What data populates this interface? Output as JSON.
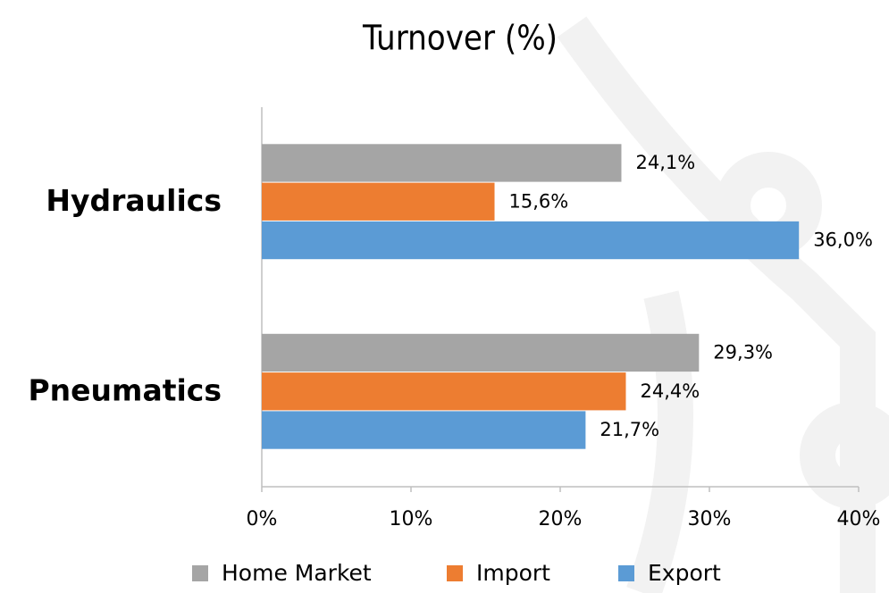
{
  "chart_data": {
    "type": "bar",
    "orientation": "horizontal",
    "title": "Turnover (%)",
    "categories": [
      "Hydraulics",
      "Pneumatics"
    ],
    "series": [
      {
        "name": "Home Market",
        "color": "#a5a5a5",
        "values": [
          24.1,
          29.3
        ],
        "value_labels": [
          "24,1%",
          "29,3%"
        ]
      },
      {
        "name": "Import",
        "color": "#ed7d31",
        "values": [
          15.6,
          24.4
        ],
        "value_labels": [
          "15,6%",
          "24,4%"
        ]
      },
      {
        "name": "Export",
        "color": "#5b9bd5",
        "values": [
          36.0,
          21.7
        ],
        "value_labels": [
          "36,0%",
          "21,7%"
        ]
      }
    ],
    "xlim": [
      0,
      40
    ],
    "xticks": [
      {
        "value": 0,
        "label": "0%"
      },
      {
        "value": 10,
        "label": "10%"
      },
      {
        "value": 20,
        "label": "20%"
      },
      {
        "value": 30,
        "label": "30%"
      },
      {
        "value": 40,
        "label": "40%"
      }
    ],
    "grid": false,
    "legend": "bottom"
  }
}
